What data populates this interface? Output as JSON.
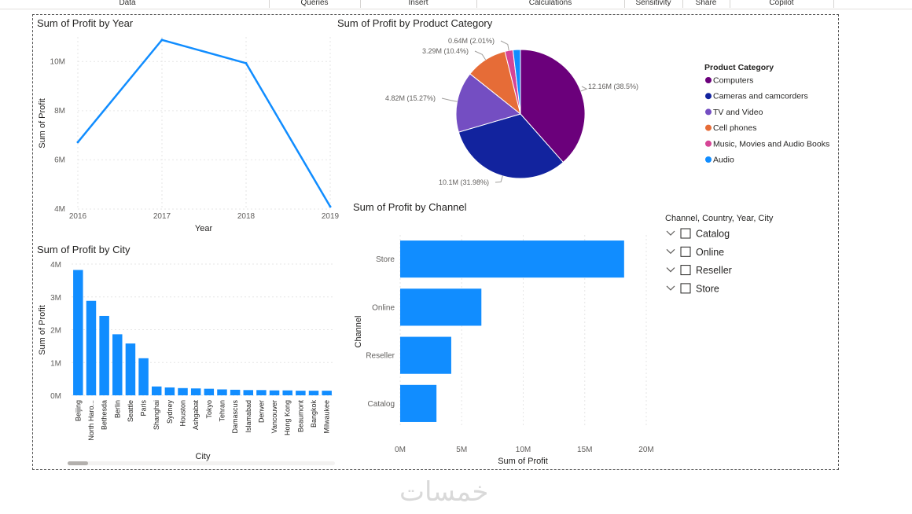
{
  "ribbon": {
    "tabs": [
      "Data",
      "Queries",
      "Insert",
      "Calculations",
      "Sensitivity",
      "Share",
      "Copilot"
    ]
  },
  "watermark": "خمسات",
  "slicer": {
    "title": "Channel, Country, Year, City",
    "items": [
      "Catalog",
      "Online",
      "Reseller",
      "Store"
    ]
  },
  "chart_data": [
    {
      "id": "profit-by-year",
      "type": "line",
      "title": "Sum of Profit by Year",
      "xlabel": "Year",
      "ylabel": "Sum of Profit",
      "x": [
        "2016",
        "2017",
        "2018",
        "2019"
      ],
      "values": [
        6.72,
        10.88,
        9.93,
        4.1
      ],
      "unit": "M",
      "ylim": [
        4,
        11
      ],
      "yticks": [
        4,
        6,
        8,
        10
      ],
      "ytick_labels": [
        "4M",
        "6M",
        "8M",
        "10M"
      ],
      "color": "#118DFF",
      "grid": true
    },
    {
      "id": "profit-by-category",
      "type": "pie",
      "title": "Sum of Profit by Product Category",
      "legend_title": "Product Category",
      "legend_position": "right",
      "slices": [
        {
          "name": "Computers",
          "value": 12.16,
          "label": "12.16M (38.5%)",
          "color": "#6B007B"
        },
        {
          "name": "Cameras and camcorders",
          "value": 10.1,
          "label": "10.1M (31.98%)",
          "color": "#12239E"
        },
        {
          "name": "TV and Video",
          "value": 4.82,
          "label": "4.82M (15.27%)",
          "color": "#744EC2"
        },
        {
          "name": "Cell phones",
          "value": 3.29,
          "label": "3.29M (10.4%)",
          "color": "#E66C37"
        },
        {
          "name": "Music, Movies and Audio Books",
          "value": 0.64,
          "label": "0.64M (2.01%)",
          "color": "#D64596"
        },
        {
          "name": "Audio",
          "value": 0.59,
          "label": "",
          "color": "#118DFF"
        }
      ]
    },
    {
      "id": "profit-by-city",
      "type": "bar",
      "title": "Sum of Profit by City",
      "xlabel": "City",
      "ylabel": "Sum of Profit",
      "categories": [
        "Beijing",
        "North Haro...",
        "Bethesda",
        "Berlin",
        "Seattle",
        "Paris",
        "Shanghai",
        "Sydney",
        "Houston",
        "Ashgabat",
        "Tokyo",
        "Tehran",
        "Damascus",
        "Islamabad",
        "Denver",
        "Vancouver",
        "Hong Kong",
        "Beaumont",
        "Bangkok",
        "Milwaukee"
      ],
      "values": [
        3.82,
        2.88,
        2.42,
        1.86,
        1.58,
        1.13,
        0.27,
        0.24,
        0.22,
        0.21,
        0.2,
        0.18,
        0.17,
        0.16,
        0.16,
        0.15,
        0.15,
        0.14,
        0.14,
        0.14
      ],
      "unit": "M",
      "ylim": [
        0,
        4
      ],
      "yticks": [
        0,
        1,
        2,
        3,
        4
      ],
      "ytick_labels": [
        "0M",
        "1M",
        "2M",
        "3M",
        "4M"
      ],
      "color": "#118DFF",
      "grid": true
    },
    {
      "id": "profit-by-channel",
      "type": "bar",
      "orientation": "horizontal",
      "title": "Sum of Profit by Channel",
      "xlabel": "Sum of Profit",
      "ylabel": "Channel",
      "categories": [
        "Store",
        "Online",
        "Reseller",
        "Catalog"
      ],
      "values": [
        18.2,
        6.6,
        4.15,
        2.95
      ],
      "unit": "M",
      "xlim": [
        0,
        20
      ],
      "xticks": [
        0,
        5,
        10,
        15,
        20
      ],
      "xtick_labels": [
        "0M",
        "5M",
        "10M",
        "15M",
        "20M"
      ],
      "color": "#118DFF",
      "grid": true
    }
  ]
}
